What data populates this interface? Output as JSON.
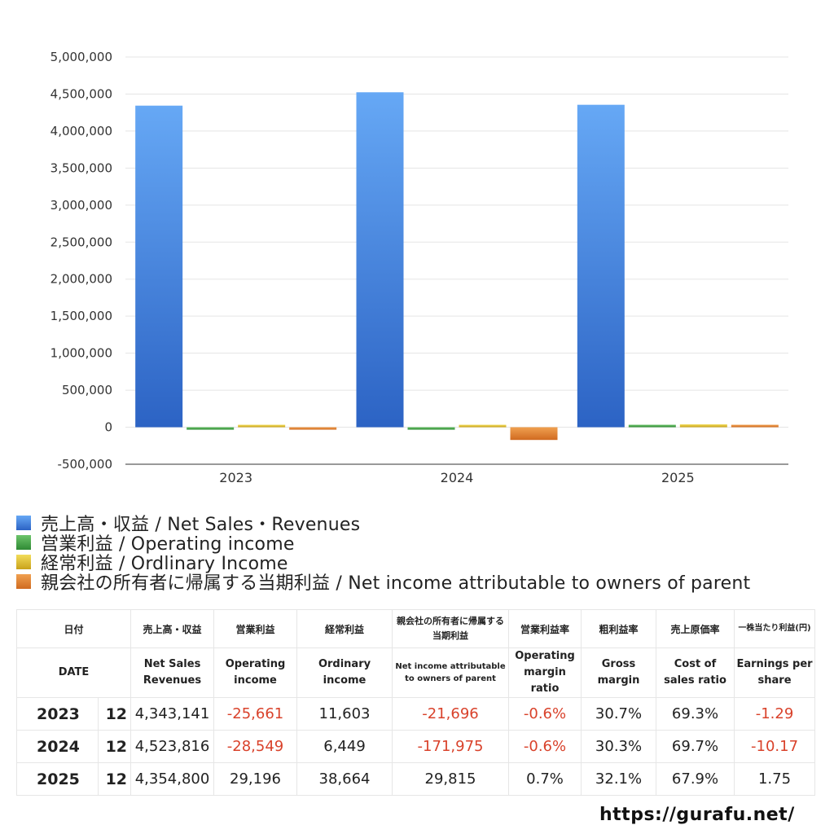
{
  "chart_data": {
    "type": "bar",
    "categories": [
      "2023",
      "2024",
      "2025"
    ],
    "series": [
      {
        "name": "売上高・収益 / Net Sales・Revenues",
        "color": "#3a7de0",
        "values": [
          4343141,
          4523816,
          4354800
        ]
      },
      {
        "name": "営業利益 / Operating income",
        "color": "#4caf50",
        "values": [
          -25661,
          -28549,
          29196
        ]
      },
      {
        "name": "経常利益 / Ordlinary Income",
        "color": "#e8c42c",
        "values": [
          11603,
          6449,
          38664
        ]
      },
      {
        "name": "親会社の所有者に帰属する当期利益 / Net income attributable to owners of parent",
        "color": "#e08030",
        "values": [
          -21696,
          -171975,
          29815
        ]
      }
    ],
    "yticks": [
      "5,000,000",
      "4,500,000",
      "4,000,000",
      "3,500,000",
      "3,000,000",
      "2,500,000",
      "2,000,000",
      "1,500,000",
      "1,000,000",
      "500,000",
      "0",
      "-500,000"
    ],
    "ylim": [
      -500000,
      5000000
    ],
    "grid": true,
    "legend_position": "bottom-left"
  },
  "table": {
    "headers_jp": [
      "日付",
      "売上高・収益",
      "営業利益",
      "経常利益",
      "親会社の所有者に帰属する当期利益",
      "営業利益率",
      "粗利益率",
      "売上原価率",
      "一株当たり利益(円)"
    ],
    "headers_en": [
      "DATE",
      "Net Sales Revenues",
      "Operating income",
      "Ordinary income",
      "Net income attributable to owners of parent",
      "Operating margin ratio",
      "Gross margin",
      "Cost of sales ratio",
      "Earnings per share"
    ],
    "rows": [
      {
        "year": "2023",
        "month": "12",
        "sales": "4,343,141",
        "op": "-25,661",
        "ord": "11,603",
        "net": "-21,696",
        "opm": "-0.6%",
        "gross": "30.7%",
        "cost": "69.3%",
        "eps": "-1.29"
      },
      {
        "year": "2024",
        "month": "12",
        "sales": "4,523,816",
        "op": "-28,549",
        "ord": "6,449",
        "net": "-171,975",
        "opm": "-0.6%",
        "gross": "30.3%",
        "cost": "69.7%",
        "eps": "-10.17"
      },
      {
        "year": "2025",
        "month": "12",
        "sales": "4,354,800",
        "op": "29,196",
        "ord": "38,664",
        "net": "29,815",
        "opm": "0.7%",
        "gross": "32.1%",
        "cost": "67.9%",
        "eps": "1.75"
      }
    ]
  },
  "footer": {
    "url": "https://gurafu.net/"
  }
}
